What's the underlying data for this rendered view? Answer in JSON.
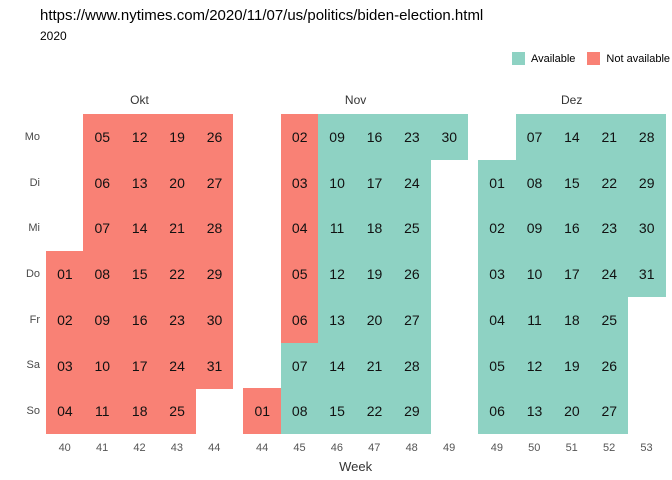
{
  "header": {
    "title": "https://www.nytimes.com/2020/11/07/us/politics/biden-election.html",
    "year": "2020"
  },
  "chart_data": {
    "type": "heatmap",
    "subtype": "calendar-availability",
    "title": "https://www.nytimes.com/2020/11/07/us/politics/biden-election.html",
    "year_label": "2020",
    "xlabel": "Week",
    "grid": false,
    "legend_position": "top-right",
    "day_rows": [
      "Mo",
      "Di",
      "Mi",
      "Do",
      "Fr",
      "Sa",
      "So"
    ],
    "legend": [
      {
        "label": "Available",
        "status": "available",
        "color": "#8ED2C3"
      },
      {
        "label": "Not available",
        "status": "not_available",
        "color": "#F98175"
      }
    ],
    "months": [
      {
        "label": "Okt",
        "weeks": [
          40,
          41,
          42,
          43,
          44
        ],
        "cells": [
          {
            "date": "01",
            "day": "Do",
            "week": 40,
            "status": "not_available"
          },
          {
            "date": "02",
            "day": "Fr",
            "week": 40,
            "status": "not_available"
          },
          {
            "date": "03",
            "day": "Sa",
            "week": 40,
            "status": "not_available"
          },
          {
            "date": "04",
            "day": "So",
            "week": 40,
            "status": "not_available"
          },
          {
            "date": "05",
            "day": "Mo",
            "week": 41,
            "status": "not_available"
          },
          {
            "date": "06",
            "day": "Di",
            "week": 41,
            "status": "not_available"
          },
          {
            "date": "07",
            "day": "Mi",
            "week": 41,
            "status": "not_available"
          },
          {
            "date": "08",
            "day": "Do",
            "week": 41,
            "status": "not_available"
          },
          {
            "date": "09",
            "day": "Fr",
            "week": 41,
            "status": "not_available"
          },
          {
            "date": "10",
            "day": "Sa",
            "week": 41,
            "status": "not_available"
          },
          {
            "date": "11",
            "day": "So",
            "week": 41,
            "status": "not_available"
          },
          {
            "date": "12",
            "day": "Mo",
            "week": 42,
            "status": "not_available"
          },
          {
            "date": "13",
            "day": "Di",
            "week": 42,
            "status": "not_available"
          },
          {
            "date": "14",
            "day": "Mi",
            "week": 42,
            "status": "not_available"
          },
          {
            "date": "15",
            "day": "Do",
            "week": 42,
            "status": "not_available"
          },
          {
            "date": "16",
            "day": "Fr",
            "week": 42,
            "status": "not_available"
          },
          {
            "date": "17",
            "day": "Sa",
            "week": 42,
            "status": "not_available"
          },
          {
            "date": "18",
            "day": "So",
            "week": 42,
            "status": "not_available"
          },
          {
            "date": "19",
            "day": "Mo",
            "week": 43,
            "status": "not_available"
          },
          {
            "date": "20",
            "day": "Di",
            "week": 43,
            "status": "not_available"
          },
          {
            "date": "21",
            "day": "Mi",
            "week": 43,
            "status": "not_available"
          },
          {
            "date": "22",
            "day": "Do",
            "week": 43,
            "status": "not_available"
          },
          {
            "date": "23",
            "day": "Fr",
            "week": 43,
            "status": "not_available"
          },
          {
            "date": "24",
            "day": "Sa",
            "week": 43,
            "status": "not_available"
          },
          {
            "date": "25",
            "day": "So",
            "week": 43,
            "status": "not_available"
          },
          {
            "date": "26",
            "day": "Mo",
            "week": 44,
            "status": "not_available"
          },
          {
            "date": "27",
            "day": "Di",
            "week": 44,
            "status": "not_available"
          },
          {
            "date": "28",
            "day": "Mi",
            "week": 44,
            "status": "not_available"
          },
          {
            "date": "29",
            "day": "Do",
            "week": 44,
            "status": "not_available"
          },
          {
            "date": "30",
            "day": "Fr",
            "week": 44,
            "status": "not_available"
          },
          {
            "date": "31",
            "day": "Sa",
            "week": 44,
            "status": "not_available"
          }
        ]
      },
      {
        "label": "Nov",
        "weeks": [
          44,
          45,
          46,
          47,
          48,
          49
        ],
        "cells": [
          {
            "date": "01",
            "day": "So",
            "week": 44,
            "status": "not_available"
          },
          {
            "date": "02",
            "day": "Mo",
            "week": 45,
            "status": "not_available"
          },
          {
            "date": "03",
            "day": "Di",
            "week": 45,
            "status": "not_available"
          },
          {
            "date": "04",
            "day": "Mi",
            "week": 45,
            "status": "not_available"
          },
          {
            "date": "05",
            "day": "Do",
            "week": 45,
            "status": "not_available"
          },
          {
            "date": "06",
            "day": "Fr",
            "week": 45,
            "status": "not_available"
          },
          {
            "date": "07",
            "day": "Sa",
            "week": 45,
            "status": "available"
          },
          {
            "date": "08",
            "day": "So",
            "week": 45,
            "status": "available"
          },
          {
            "date": "09",
            "day": "Mo",
            "week": 46,
            "status": "available"
          },
          {
            "date": "10",
            "day": "Di",
            "week": 46,
            "status": "available"
          },
          {
            "date": "11",
            "day": "Mi",
            "week": 46,
            "status": "available"
          },
          {
            "date": "12",
            "day": "Do",
            "week": 46,
            "status": "available"
          },
          {
            "date": "13",
            "day": "Fr",
            "week": 46,
            "status": "available"
          },
          {
            "date": "14",
            "day": "Sa",
            "week": 46,
            "status": "available"
          },
          {
            "date": "15",
            "day": "So",
            "week": 46,
            "status": "available"
          },
          {
            "date": "16",
            "day": "Mo",
            "week": 47,
            "status": "available"
          },
          {
            "date": "17",
            "day": "Di",
            "week": 47,
            "status": "available"
          },
          {
            "date": "18",
            "day": "Mi",
            "week": 47,
            "status": "available"
          },
          {
            "date": "19",
            "day": "Do",
            "week": 47,
            "status": "available"
          },
          {
            "date": "20",
            "day": "Fr",
            "week": 47,
            "status": "available"
          },
          {
            "date": "21",
            "day": "Sa",
            "week": 47,
            "status": "available"
          },
          {
            "date": "22",
            "day": "So",
            "week": 47,
            "status": "available"
          },
          {
            "date": "23",
            "day": "Mo",
            "week": 48,
            "status": "available"
          },
          {
            "date": "24",
            "day": "Di",
            "week": 48,
            "status": "available"
          },
          {
            "date": "25",
            "day": "Mi",
            "week": 48,
            "status": "available"
          },
          {
            "date": "26",
            "day": "Do",
            "week": 48,
            "status": "available"
          },
          {
            "date": "27",
            "day": "Fr",
            "week": 48,
            "status": "available"
          },
          {
            "date": "28",
            "day": "Sa",
            "week": 48,
            "status": "available"
          },
          {
            "date": "29",
            "day": "So",
            "week": 48,
            "status": "available"
          },
          {
            "date": "30",
            "day": "Mo",
            "week": 49,
            "status": "available"
          }
        ]
      },
      {
        "label": "Dez",
        "weeks": [
          49,
          50,
          51,
          52,
          53
        ],
        "cells": [
          {
            "date": "01",
            "day": "Di",
            "week": 49,
            "status": "available"
          },
          {
            "date": "02",
            "day": "Mi",
            "week": 49,
            "status": "available"
          },
          {
            "date": "03",
            "day": "Do",
            "week": 49,
            "status": "available"
          },
          {
            "date": "04",
            "day": "Fr",
            "week": 49,
            "status": "available"
          },
          {
            "date": "05",
            "day": "Sa",
            "week": 49,
            "status": "available"
          },
          {
            "date": "06",
            "day": "So",
            "week": 49,
            "status": "available"
          },
          {
            "date": "07",
            "day": "Mo",
            "week": 50,
            "status": "available"
          },
          {
            "date": "08",
            "day": "Di",
            "week": 50,
            "status": "available"
          },
          {
            "date": "09",
            "day": "Mi",
            "week": 50,
            "status": "available"
          },
          {
            "date": "10",
            "day": "Do",
            "week": 50,
            "status": "available"
          },
          {
            "date": "11",
            "day": "Fr",
            "week": 50,
            "status": "available"
          },
          {
            "date": "12",
            "day": "Sa",
            "week": 50,
            "status": "available"
          },
          {
            "date": "13",
            "day": "So",
            "week": 50,
            "status": "available"
          },
          {
            "date": "14",
            "day": "Mo",
            "week": 51,
            "status": "available"
          },
          {
            "date": "15",
            "day": "Di",
            "week": 51,
            "status": "available"
          },
          {
            "date": "16",
            "day": "Mi",
            "week": 51,
            "status": "available"
          },
          {
            "date": "17",
            "day": "Do",
            "week": 51,
            "status": "available"
          },
          {
            "date": "18",
            "day": "Fr",
            "week": 51,
            "status": "available"
          },
          {
            "date": "19",
            "day": "Sa",
            "week": 51,
            "status": "available"
          },
          {
            "date": "20",
            "day": "So",
            "week": 51,
            "status": "available"
          },
          {
            "date": "21",
            "day": "Mo",
            "week": 52,
            "status": "available"
          },
          {
            "date": "22",
            "day": "Di",
            "week": 52,
            "status": "available"
          },
          {
            "date": "23",
            "day": "Mi",
            "week": 52,
            "status": "available"
          },
          {
            "date": "24",
            "day": "Do",
            "week": 52,
            "status": "available"
          },
          {
            "date": "25",
            "day": "Fr",
            "week": 52,
            "status": "available"
          },
          {
            "date": "26",
            "day": "Sa",
            "week": 52,
            "status": "available"
          },
          {
            "date": "27",
            "day": "So",
            "week": 52,
            "status": "available"
          },
          {
            "date": "28",
            "day": "Mo",
            "week": 53,
            "status": "available"
          },
          {
            "date": "29",
            "day": "Di",
            "week": 53,
            "status": "available"
          },
          {
            "date": "30",
            "day": "Mi",
            "week": 53,
            "status": "available"
          },
          {
            "date": "31",
            "day": "Do",
            "week": 53,
            "status": "available"
          }
        ]
      }
    ]
  }
}
